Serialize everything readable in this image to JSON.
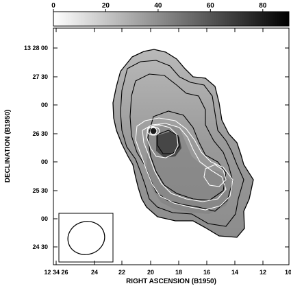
{
  "colorbar": {
    "ticks": [
      "0",
      "20",
      "40",
      "60",
      "80"
    ],
    "min": 0,
    "max": 90
  },
  "axes": {
    "xlabel": "RIGHT ASCENSION (B1950)",
    "ylabel": "DECLINATION (B1950)",
    "x_ticks": [
      "12 34 26",
      "24",
      "22",
      "20",
      "18",
      "16",
      "14",
      "12",
      "10"
    ],
    "y_ticks": [
      "13 28 00",
      "27 30",
      "00",
      "26 30",
      "00",
      "25 30",
      "00",
      "24 30"
    ]
  },
  "image": {
    "colormap": "grayscale",
    "black_contours": 4,
    "white_contours": 4,
    "beam_shape": "ellipse"
  }
}
